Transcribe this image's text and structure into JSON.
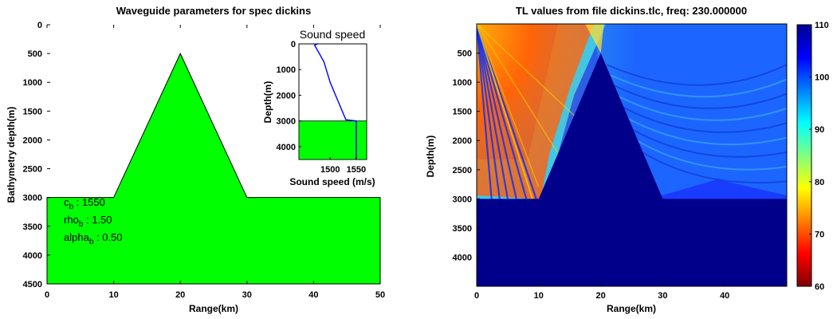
{
  "chart_data": [
    {
      "type": "area",
      "title": "Waveguide parameters for spec dickins",
      "xlabel": "Range(km)",
      "ylabel": "Bathymetry depth(m)",
      "xlim": [
        0,
        50
      ],
      "ylim": [
        0,
        4500
      ],
      "y_reversed": true,
      "x_ticks": [
        "0",
        "10",
        "20",
        "30",
        "40",
        "50"
      ],
      "y_ticks": [
        "0",
        "500",
        "1000",
        "1500",
        "2000",
        "2500",
        "3000",
        "3500",
        "4000",
        "4500"
      ],
      "fill_color": "#00ff00",
      "bathymetry": {
        "x": [
          0,
          10,
          20,
          30,
          50
        ],
        "y": [
          3000,
          3000,
          500,
          3000,
          3000
        ]
      },
      "annotations": [
        {
          "main": "c",
          "sub": "b",
          "rest": " : 1550"
        },
        {
          "main": "rho",
          "sub": "b",
          "rest": " : 1.50"
        },
        {
          "main": "alpha",
          "sub": "b",
          "rest": " : 0.50"
        }
      ]
    },
    {
      "type": "line",
      "title": "Sound speed",
      "xlabel": "Sound speed (m/s)",
      "ylabel": "Depth(m)",
      "xlim": [
        1440,
        1570
      ],
      "ylim": [
        0,
        4500
      ],
      "y_reversed": true,
      "x_ticks": [
        "1500",
        "1550"
      ],
      "y_ticks": [
        "0",
        "1000",
        "2000",
        "3000",
        "4000"
      ],
      "line_color": "#0000ff",
      "profile": {
        "x": [
          1476,
          1470,
          1488,
          1500,
          1530,
          1550,
          1550
        ],
        "y": [
          0,
          50,
          700,
          1500,
          2950,
          3000,
          4500
        ]
      },
      "seabed_depth": 3000,
      "seabed_color": "#00ff00"
    },
    {
      "type": "heatmap",
      "title": "TL values from file dickins.tlc, freq: 230.000000",
      "xlabel": "Range(km)",
      "ylabel": "Depth(m)",
      "xlim": [
        0,
        50
      ],
      "ylim": [
        0,
        4500
      ],
      "y_reversed": true,
      "x_ticks": [
        "0",
        "10",
        "20",
        "30",
        "40"
      ],
      "y_ticks": [
        "500",
        "1000",
        "1500",
        "2000",
        "2500",
        "3000",
        "3500",
        "4000"
      ],
      "colorbar_ticks": [
        "110",
        "100",
        "90",
        "80",
        "70",
        "60"
      ],
      "clim": [
        60,
        110
      ],
      "colormap": "jet",
      "bottom": {
        "x": [
          0,
          10,
          20,
          30,
          50
        ],
        "y": [
          3000,
          3000,
          500,
          3000,
          3000
        ]
      }
    }
  ]
}
